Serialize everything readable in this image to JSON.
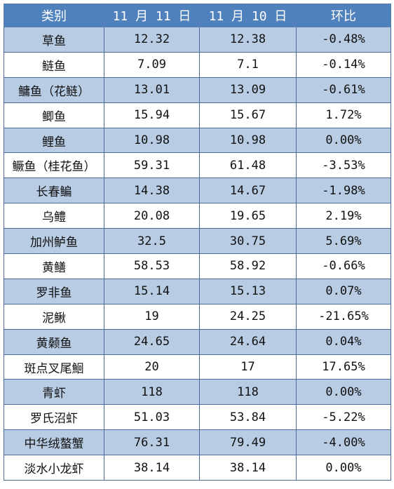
{
  "header": [
    "类别",
    "11 月 11 日",
    "11 月 10 日",
    "环比"
  ],
  "rows": [
    {
      "name": "草鱼",
      "d11": "12.32",
      "d10": "12.38",
      "change": "-0.48%"
    },
    {
      "name": "鲢鱼",
      "d11": "7.09",
      "d10": "7.1",
      "change": "-0.14%"
    },
    {
      "name": "鳙鱼（花鲢）",
      "d11": "13.01",
      "d10": "13.09",
      "change": "-0.61%"
    },
    {
      "name": "鲫鱼",
      "d11": "15.94",
      "d10": "15.67",
      "change": "1.72%"
    },
    {
      "name": "鲤鱼",
      "d11": "10.98",
      "d10": "10.98",
      "change": "0.00%"
    },
    {
      "name": "鳜鱼（桂花鱼）",
      "d11": "59.31",
      "d10": "61.48",
      "change": "-3.53%"
    },
    {
      "name": "长春鳊",
      "d11": "14.38",
      "d10": "14.67",
      "change": "-1.98%"
    },
    {
      "name": "乌鳢",
      "d11": "20.08",
      "d10": "19.65",
      "change": "2.19%"
    },
    {
      "name": "加州鲈鱼",
      "d11": "32.5",
      "d10": "30.75",
      "change": "5.69%"
    },
    {
      "name": "黄鳝",
      "d11": "58.53",
      "d10": "58.92",
      "change": "-0.66%"
    },
    {
      "name": "罗非鱼",
      "d11": "15.14",
      "d10": "15.13",
      "change": "0.07%"
    },
    {
      "name": "泥鳅",
      "d11": "19",
      "d10": "24.25",
      "change": "-21.65%"
    },
    {
      "name": "黄颡鱼",
      "d11": "24.65",
      "d10": "24.64",
      "change": "0.04%"
    },
    {
      "name": "斑点叉尾鮰",
      "d11": "20",
      "d10": "17",
      "change": "17.65%"
    },
    {
      "name": "青虾",
      "d11": "118",
      "d10": "118",
      "change": "0.00%"
    },
    {
      "name": "罗氏沼虾",
      "d11": "51.03",
      "d10": "53.84",
      "change": "-5.22%"
    },
    {
      "name": "中华绒螯蟹",
      "d11": "76.31",
      "d10": "79.49",
      "change": "-4.00%"
    },
    {
      "name": "淡水小龙虾",
      "d11": "38.14",
      "d10": "38.14",
      "change": "0.00%"
    }
  ]
}
